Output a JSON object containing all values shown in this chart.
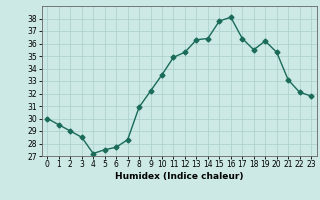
{
  "x": [
    0,
    1,
    2,
    3,
    4,
    5,
    6,
    7,
    8,
    9,
    10,
    11,
    12,
    13,
    14,
    15,
    16,
    17,
    18,
    19,
    20,
    21,
    22,
    23
  ],
  "y": [
    30,
    29.5,
    29,
    28.5,
    27.2,
    27.5,
    27.7,
    28.3,
    30.9,
    32.2,
    33.5,
    34.9,
    35.3,
    36.3,
    36.4,
    37.8,
    38.1,
    36.4,
    35.5,
    36.2,
    35.3,
    33.1,
    32.1,
    31.8
  ],
  "line_color": "#1a6b5a",
  "marker": "D",
  "markersize": 2.5,
  "linewidth": 1.0,
  "bg_color": "#cce9e5",
  "grid_color": "#aacfcc",
  "xlabel": "Humidex (Indice chaleur)",
  "xlim": [
    -0.5,
    23.5
  ],
  "ylim": [
    27,
    39
  ],
  "yticks": [
    27,
    28,
    29,
    30,
    31,
    32,
    33,
    34,
    35,
    36,
    37,
    38
  ],
  "xticks": [
    0,
    1,
    2,
    3,
    4,
    5,
    6,
    7,
    8,
    9,
    10,
    11,
    12,
    13,
    14,
    15,
    16,
    17,
    18,
    19,
    20,
    21,
    22,
    23
  ],
  "label_fontsize": 6.5,
  "tick_fontsize": 5.5
}
